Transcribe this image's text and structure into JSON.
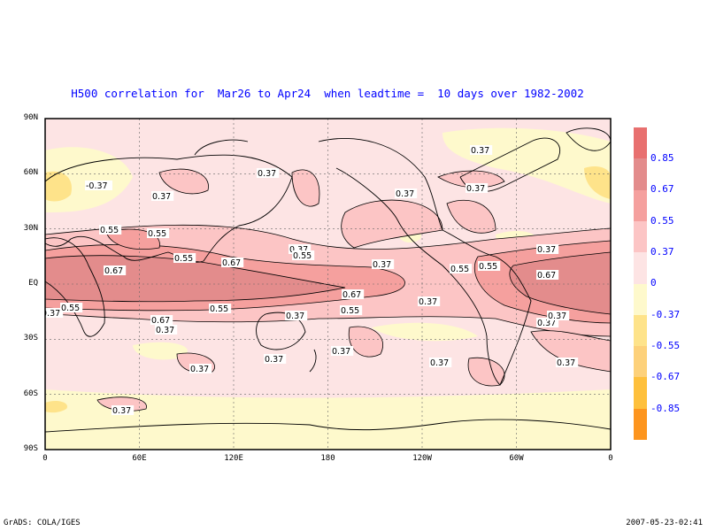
{
  "title": "H500 correlation for  Mar26 to Apr24  when leadtime =  10 days over 1982-2002",
  "lat_labels": [
    "90N",
    "60N",
    "30N",
    "EQ",
    "30S",
    "60S",
    "90S"
  ],
  "lon_labels": [
    "0",
    "60E",
    "120E",
    "180",
    "120W",
    "60W",
    "0"
  ],
  "colorbar": {
    "labels": [
      "0.85",
      "0.67",
      "0.55",
      "0.37",
      "0",
      "-0.37",
      "-0.55",
      "-0.67",
      "-0.85"
    ],
    "colors": [
      "#e8706f",
      "#e38c8c",
      "#f5a09e",
      "#fcc5c5",
      "#fde4e4",
      "#fef9cc",
      "#fee38a",
      "#fdd17a",
      "#fec03c",
      "#fd951e"
    ]
  },
  "contour_labels": [
    "-0.37",
    "0.37",
    "0.37",
    "0.37",
    "0.37",
    "0.37",
    "0.55",
    "0.55",
    "0.55",
    "0.67",
    "0.67",
    "0.37",
    "0.55",
    "0.37",
    "0.55",
    "0.55",
    "0.67",
    "0.37",
    "0.55",
    "0.37",
    "0.67",
    "0.37",
    "0.55",
    "0.67",
    "0.55",
    "0.37",
    "0.37",
    "0.37",
    "0.37",
    "0.37",
    "0.37",
    "0.37",
    "0.37",
    "0.37",
    "0.37"
  ],
  "footer": {
    "left": "GrADS: COLA/IGES",
    "right": "2007-05-23-02:41"
  }
}
